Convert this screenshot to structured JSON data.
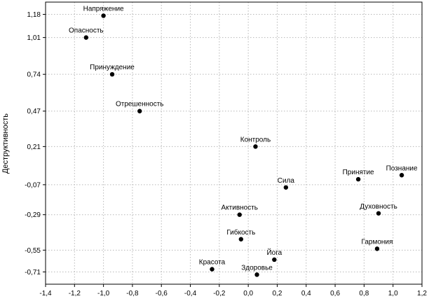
{
  "chart_data": {
    "type": "scatter",
    "title": "",
    "xlabel": "",
    "ylabel": "Деструктивность",
    "xlim": [
      -1.4,
      1.2
    ],
    "ylim": [
      -0.8,
      1.27
    ],
    "grid": true,
    "x_ticks": [
      "-1,4",
      "-1,2",
      "-1,0",
      "-0,8",
      "-0,6",
      "-0,4",
      "-0,2",
      "0,0",
      "0,2",
      "0,4",
      "0,6",
      "0,8",
      "1,0",
      "1,2"
    ],
    "x_tick_values": [
      -1.4,
      -1.2,
      -1.0,
      -0.8,
      -0.6,
      -0.4,
      -0.2,
      0.0,
      0.2,
      0.4,
      0.6,
      0.8,
      1.0,
      1.2
    ],
    "y_ticks": [
      "1,18",
      "1,01",
      "0,74",
      "0,47",
      "0,21",
      "-0,07",
      "-0,29",
      "-0,55",
      "-0,71"
    ],
    "y_tick_values": [
      1.18,
      1.01,
      0.74,
      0.47,
      0.21,
      -0.07,
      -0.29,
      -0.55,
      -0.71
    ],
    "points": [
      {
        "label": "Напряжение",
        "x": -1.0,
        "y": 1.17,
        "label_pos": "above"
      },
      {
        "label": "Опасность",
        "x": -1.12,
        "y": 1.01,
        "label_pos": "above"
      },
      {
        "label": "Принуждение",
        "x": -0.94,
        "y": 0.74,
        "label_pos": "above"
      },
      {
        "label": "Отрешенность",
        "x": -0.75,
        "y": 0.47,
        "label_pos": "above"
      },
      {
        "label": "Контроль",
        "x": 0.05,
        "y": 0.21,
        "label_pos": "above"
      },
      {
        "label": "Сила",
        "x": 0.26,
        "y": -0.09,
        "label_pos": "above"
      },
      {
        "label": "Принятие",
        "x": 0.76,
        "y": -0.03,
        "label_pos": "above"
      },
      {
        "label": "Познание",
        "x": 1.06,
        "y": 0.0,
        "label_pos": "above"
      },
      {
        "label": "Активность",
        "x": -0.06,
        "y": -0.29,
        "label_pos": "above"
      },
      {
        "label": "Духовность",
        "x": 0.9,
        "y": -0.28,
        "label_pos": "above"
      },
      {
        "label": "Гибкость",
        "x": -0.05,
        "y": -0.47,
        "label_pos": "above"
      },
      {
        "label": "Гармония",
        "x": 0.89,
        "y": -0.54,
        "label_pos": "above"
      },
      {
        "label": "Йога",
        "x": 0.18,
        "y": -0.62,
        "label_pos": "above"
      },
      {
        "label": "Красота",
        "x": -0.25,
        "y": -0.69,
        "label_pos": "above"
      },
      {
        "label": "Здоровье",
        "x": 0.06,
        "y": -0.73,
        "label_pos": "above"
      }
    ]
  }
}
